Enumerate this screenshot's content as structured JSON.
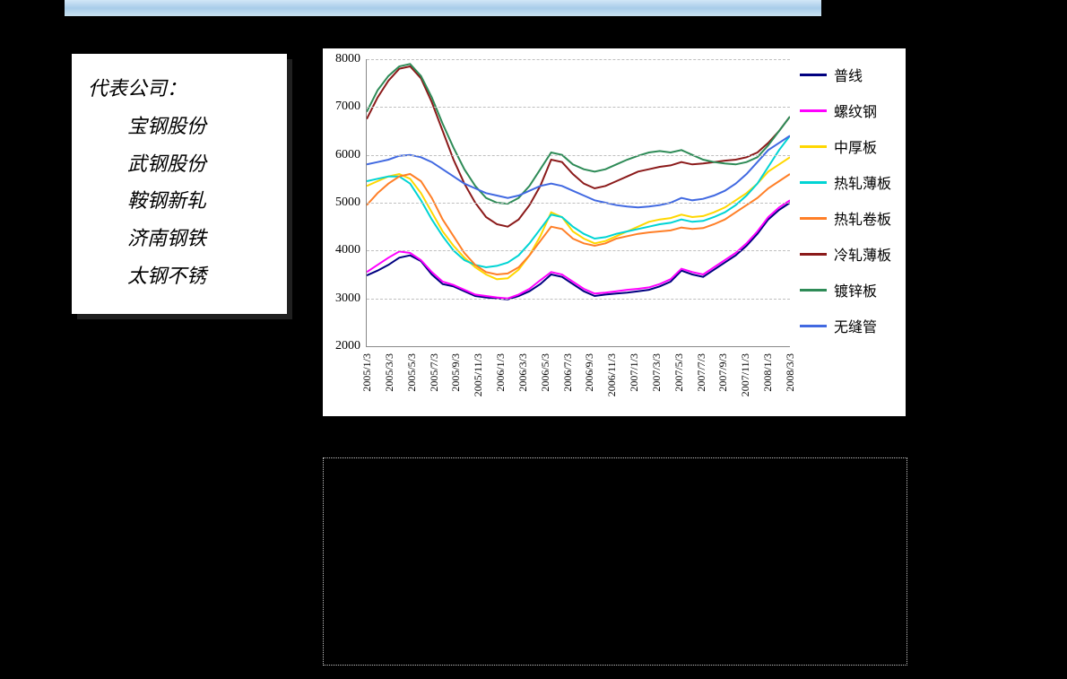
{
  "companyBox": {
    "title": "代表公司：",
    "items": [
      "宝钢股份",
      "武钢股份",
      "鞍钢新轧",
      "济南钢铁",
      "太钢不锈"
    ]
  },
  "chart": {
    "type": "line",
    "background_color": "#ffffff",
    "grid_color": "#bfbfbf",
    "axis_color": "#888888",
    "label_fontsize": 14,
    "legend_fontsize": 16,
    "xtick_fontsize": 12,
    "line_width": 2,
    "ylim": [
      2000,
      8000
    ],
    "ytick_step": 1000,
    "yticks": [
      2000,
      3000,
      4000,
      5000,
      6000,
      7000,
      8000
    ],
    "xticks": [
      "2005/1/3",
      "2005/3/3",
      "2005/5/3",
      "2005/7/3",
      "2005/9/3",
      "2005/11/3",
      "2006/1/3",
      "2006/3/3",
      "2006/5/3",
      "2006/7/3",
      "2006/9/3",
      "2006/11/3",
      "2007/1/3",
      "2007/3/3",
      "2007/5/3",
      "2007/7/3",
      "2007/9/3",
      "2007/11/3",
      "2008/1/3",
      "2008/3/3"
    ],
    "n_points": 40,
    "series": [
      {
        "name": "普线",
        "color": "#000080",
        "values": [
          3480,
          3580,
          3700,
          3850,
          3900,
          3780,
          3500,
          3300,
          3250,
          3150,
          3050,
          3020,
          3000,
          2980,
          3050,
          3150,
          3300,
          3500,
          3450,
          3300,
          3150,
          3050,
          3080,
          3100,
          3120,
          3150,
          3180,
          3250,
          3350,
          3580,
          3500,
          3450,
          3600,
          3750,
          3900,
          4100,
          4350,
          4650,
          4850,
          5000
        ]
      },
      {
        "name": "螺纹钢",
        "color": "#ff00ff",
        "values": [
          3550,
          3700,
          3850,
          3980,
          3950,
          3800,
          3550,
          3350,
          3280,
          3180,
          3080,
          3050,
          3020,
          3000,
          3080,
          3200,
          3380,
          3550,
          3500,
          3350,
          3200,
          3100,
          3120,
          3150,
          3180,
          3200,
          3230,
          3300,
          3400,
          3620,
          3550,
          3500,
          3650,
          3800,
          3950,
          4150,
          4400,
          4700,
          4900,
          5050
        ]
      },
      {
        "name": "中厚板",
        "color": "#ffd700",
        "values": [
          5350,
          5450,
          5550,
          5600,
          5500,
          5200,
          4800,
          4400,
          4100,
          3850,
          3650,
          3500,
          3400,
          3420,
          3600,
          3900,
          4300,
          4800,
          4700,
          4400,
          4250,
          4150,
          4200,
          4300,
          4400,
          4500,
          4600,
          4650,
          4680,
          4750,
          4700,
          4720,
          4800,
          4900,
          5050,
          5200,
          5400,
          5650,
          5800,
          5950
        ]
      },
      {
        "name": "热轧薄板",
        "color": "#00d4d4",
        "values": [
          5450,
          5500,
          5550,
          5550,
          5400,
          5050,
          4650,
          4300,
          4000,
          3800,
          3700,
          3650,
          3680,
          3750,
          3900,
          4150,
          4450,
          4750,
          4700,
          4500,
          4350,
          4250,
          4280,
          4350,
          4400,
          4450,
          4500,
          4550,
          4580,
          4650,
          4600,
          4620,
          4700,
          4800,
          4950,
          5150,
          5400,
          5750,
          6100,
          6400
        ]
      },
      {
        "name": "热轧卷板",
        "color": "#ff7f27",
        "values": [
          4950,
          5200,
          5400,
          5550,
          5600,
          5450,
          5100,
          4650,
          4300,
          3950,
          3700,
          3550,
          3500,
          3520,
          3650,
          3900,
          4200,
          4500,
          4450,
          4250,
          4150,
          4100,
          4150,
          4250,
          4300,
          4350,
          4380,
          4400,
          4420,
          4480,
          4450,
          4470,
          4550,
          4650,
          4800,
          4950,
          5100,
          5300,
          5450,
          5600
        ]
      },
      {
        "name": "冷轧薄板",
        "color": "#8b1a1a",
        "values": [
          6750,
          7200,
          7550,
          7800,
          7850,
          7600,
          7100,
          6500,
          5900,
          5400,
          5000,
          4700,
          4550,
          4500,
          4650,
          4950,
          5350,
          5900,
          5850,
          5600,
          5400,
          5300,
          5350,
          5450,
          5550,
          5650,
          5700,
          5750,
          5780,
          5850,
          5800,
          5820,
          5850,
          5880,
          5900,
          5950,
          6050,
          6250,
          6500,
          6800
        ]
      },
      {
        "name": "镀锌板",
        "color": "#2e8b57",
        "values": [
          6900,
          7350,
          7650,
          7850,
          7900,
          7650,
          7200,
          6650,
          6150,
          5700,
          5350,
          5100,
          5000,
          4980,
          5100,
          5350,
          5700,
          6050,
          6000,
          5800,
          5700,
          5650,
          5700,
          5800,
          5900,
          5980,
          6050,
          6080,
          6050,
          6100,
          6000,
          5900,
          5850,
          5820,
          5800,
          5850,
          5950,
          6200,
          6500,
          6800
        ]
      },
      {
        "name": "无缝管",
        "color": "#4169e1",
        "values": [
          5800,
          5850,
          5900,
          5980,
          6000,
          5950,
          5850,
          5700,
          5550,
          5400,
          5300,
          5200,
          5150,
          5100,
          5150,
          5250,
          5350,
          5400,
          5350,
          5250,
          5150,
          5050,
          5000,
          4950,
          4920,
          4900,
          4920,
          4950,
          5000,
          5100,
          5050,
          5080,
          5150,
          5250,
          5400,
          5600,
          5850,
          6100,
          6250,
          6400
        ]
      }
    ]
  }
}
